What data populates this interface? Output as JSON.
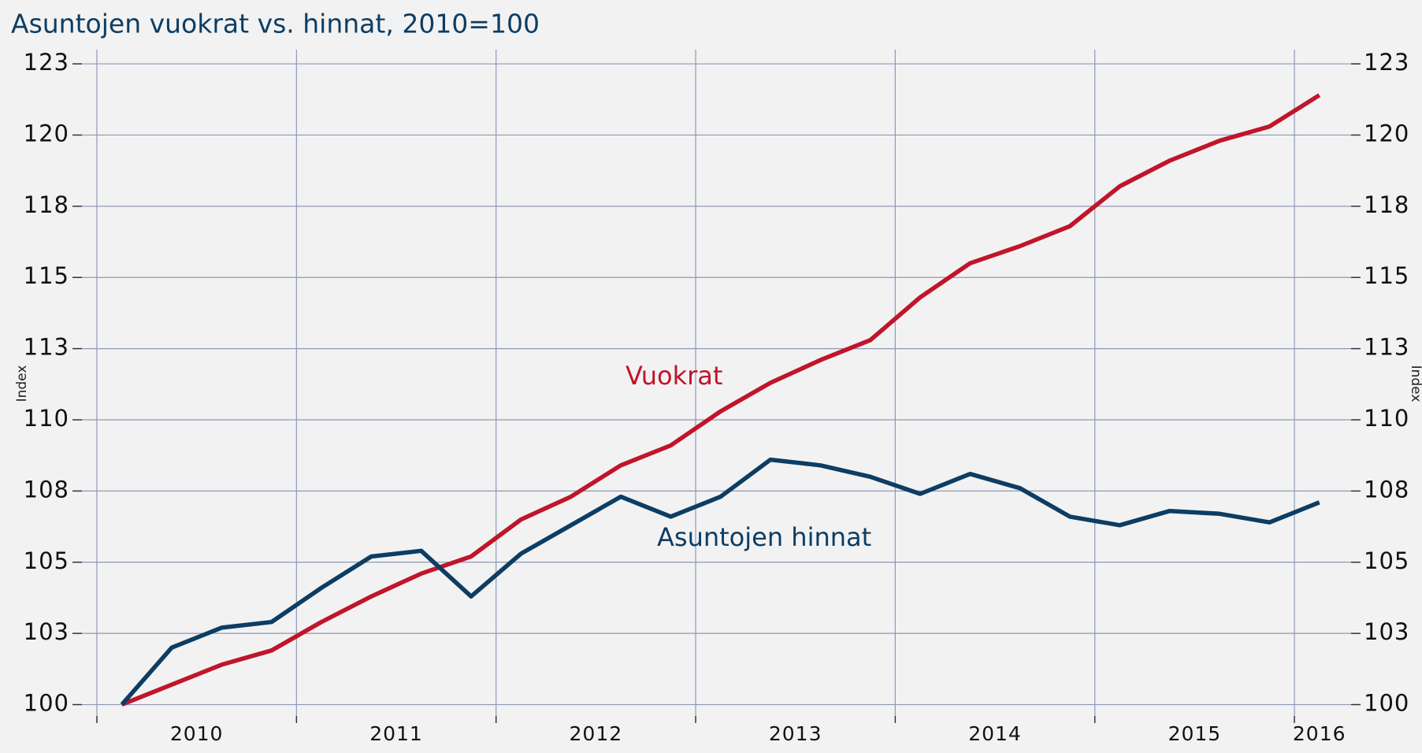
{
  "chart_data": {
    "type": "line",
    "title": "Asuntojen vuokrat vs. hinnat, 2010=100",
    "ylabel": "Index",
    "y2label": "Index",
    "x": [
      2010.125,
      2010.375,
      2010.625,
      2010.875,
      2011.125,
      2011.375,
      2011.625,
      2011.875,
      2012.125,
      2012.375,
      2012.625,
      2012.875,
      2013.125,
      2013.375,
      2013.625,
      2013.875,
      2014.125,
      2014.375,
      2014.625,
      2014.875,
      2015.125,
      2015.375,
      2015.625,
      2015.875,
      2016.125
    ],
    "series": [
      {
        "name": "Vuokrat",
        "color": "#c0152a",
        "values": [
          100,
          100.7,
          101.4,
          101.9,
          102.9,
          103.8,
          104.6,
          105.2,
          106.5,
          107.3,
          108.4,
          109.1,
          110.3,
          111.3,
          112.1,
          112.8,
          114.3,
          115.5,
          116.1,
          116.8,
          118.2,
          119.1,
          119.8,
          120.3,
          121.4
        ]
      },
      {
        "name": "Asuntojen hinnat",
        "color": "#0d3d63",
        "values": [
          100,
          102.0,
          102.7,
          102.9,
          104.1,
          105.2,
          105.4,
          103.8,
          105.3,
          106.3,
          107.3,
          106.6,
          107.3,
          108.6,
          108.4,
          108.0,
          107.4,
          108.1,
          107.6,
          106.6,
          106.3,
          106.8,
          106.7,
          106.4,
          107.1
        ]
      }
    ],
    "xlim": [
      2009.925,
      2016.284
    ],
    "xticks": [
      {
        "value": 2010.5,
        "label": "2010"
      },
      {
        "value": 2011.5,
        "label": "2011"
      },
      {
        "value": 2012.5,
        "label": "2012"
      },
      {
        "value": 2013.5,
        "label": "2013"
      },
      {
        "value": 2014.5,
        "label": "2014"
      },
      {
        "value": 2015.5,
        "label": "2015"
      },
      {
        "value": 2016.125,
        "label": "2016"
      }
    ],
    "xgrid": [
      2010,
      2011,
      2012,
      2013,
      2014,
      2015,
      2016
    ],
    "ylim": [
      99.6,
      123
    ],
    "yticks": [
      100,
      {
        "value": 102.5,
        "label": "103"
      },
      105,
      {
        "value": 107.5,
        "label": "108"
      },
      110,
      {
        "value": 112.5,
        "label": "113"
      },
      115,
      {
        "value": 117.5,
        "label": "118"
      },
      120,
      {
        "value": 122.5,
        "label": "123"
      }
    ],
    "grid": true
  }
}
